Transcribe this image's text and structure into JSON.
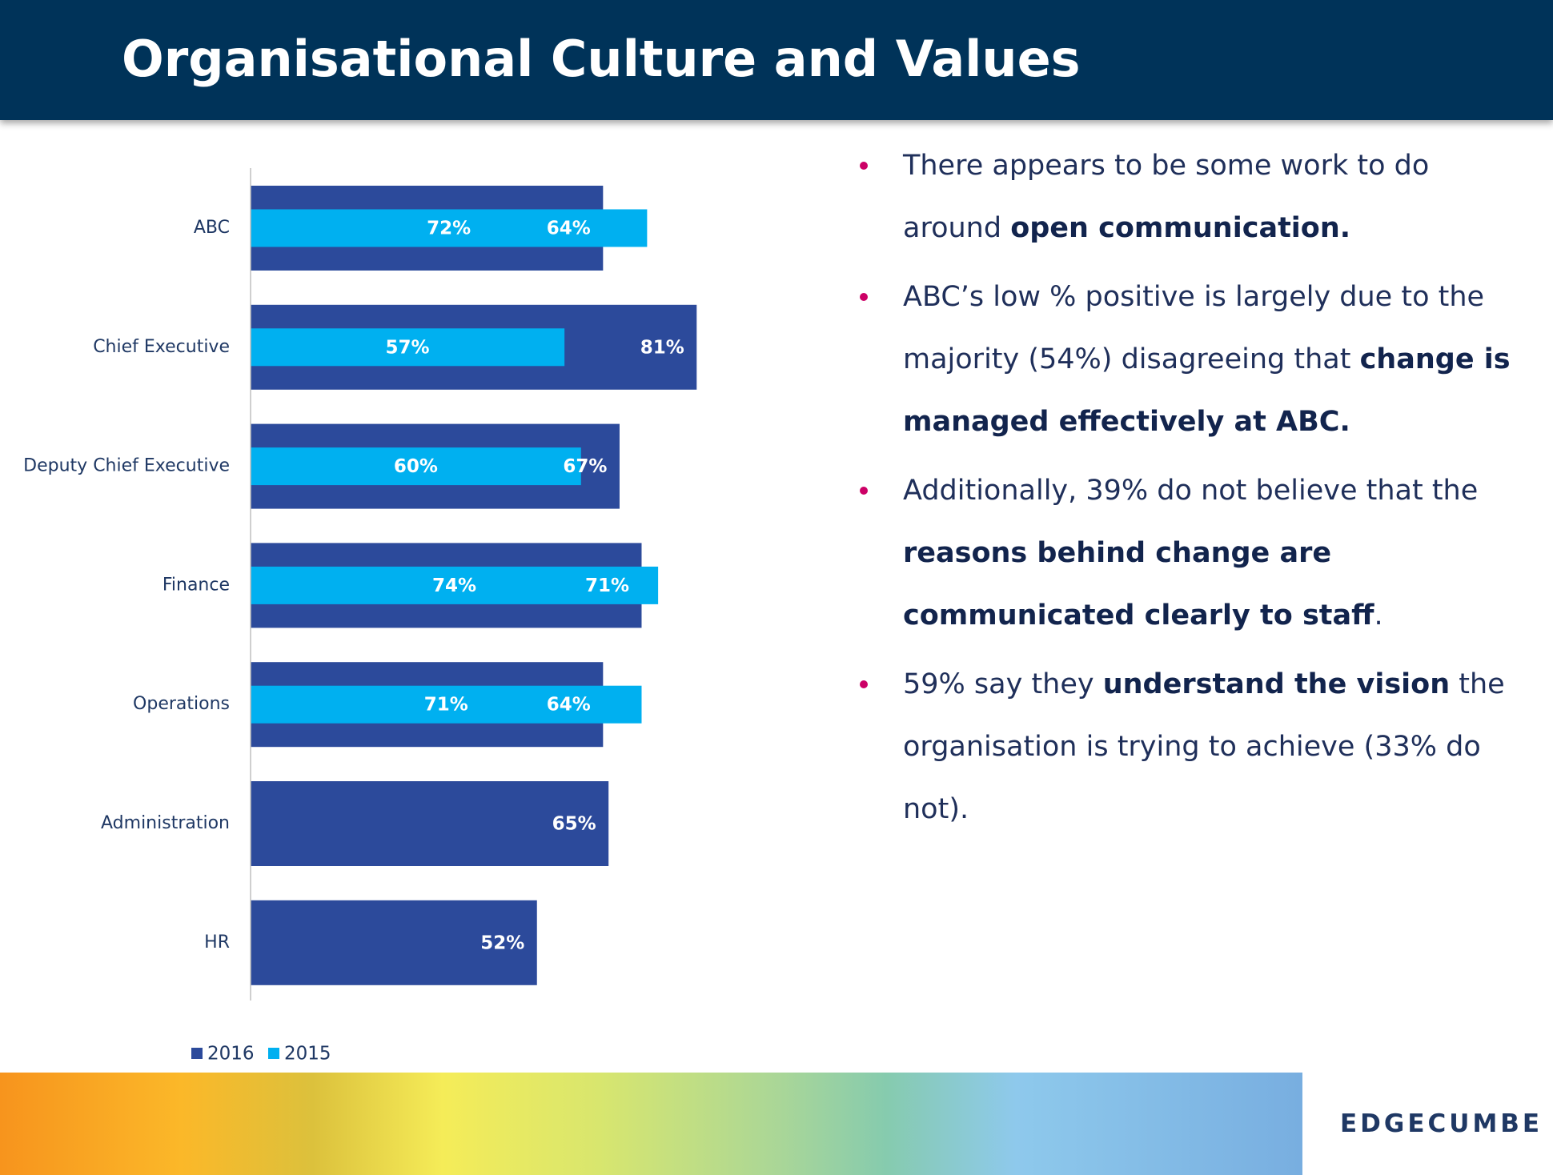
{
  "header": {
    "title": "Organisational Culture and Values"
  },
  "chart_data": {
    "type": "bar",
    "orientation": "horizontal",
    "categories": [
      "ABC",
      "Chief Executive",
      "Deputy Chief Executive",
      "Finance",
      "Operations",
      "Administration",
      "HR"
    ],
    "series": [
      {
        "name": "2016",
        "color": "#2c4a9b",
        "values": [
          64,
          81,
          67,
          71,
          64,
          65,
          52
        ],
        "value_labels": [
          "64%",
          "81%",
          "67%",
          "71%",
          "64%",
          "65%",
          "52%"
        ]
      },
      {
        "name": "2015",
        "color": "#00b0f0",
        "values": [
          72,
          57,
          60,
          74,
          71,
          null,
          null
        ],
        "value_labels": [
          "72%",
          "57%",
          "60%",
          "74%",
          "71%",
          null,
          null
        ]
      }
    ],
    "xlim": [
      0,
      100
    ],
    "legend": "bottom-left"
  },
  "bullets": [
    [
      {
        "text": "There appears to be some work to do around ",
        "bold": false
      },
      {
        "text": "open communication.",
        "bold": true
      }
    ],
    [
      {
        "text": "ABC’s low % positive is largely due to the majority (54%) disagreeing that ",
        "bold": false
      },
      {
        "text": "change is managed effectively at ABC.",
        "bold": true
      }
    ],
    [
      {
        "text": "Additionally, 39% do not believe that the ",
        "bold": false
      },
      {
        "text": "reasons behind change are communicated clearly to staff",
        "bold": true
      },
      {
        "text": ".",
        "bold": false
      }
    ],
    [
      {
        "text": "59% say they ",
        "bold": false
      },
      {
        "text": "understand the vision",
        "bold": true
      },
      {
        "text": " the organisation is trying to achieve (33% do not).",
        "bold": false
      }
    ]
  ],
  "footer": {
    "brand": "EDGECUMBE"
  }
}
